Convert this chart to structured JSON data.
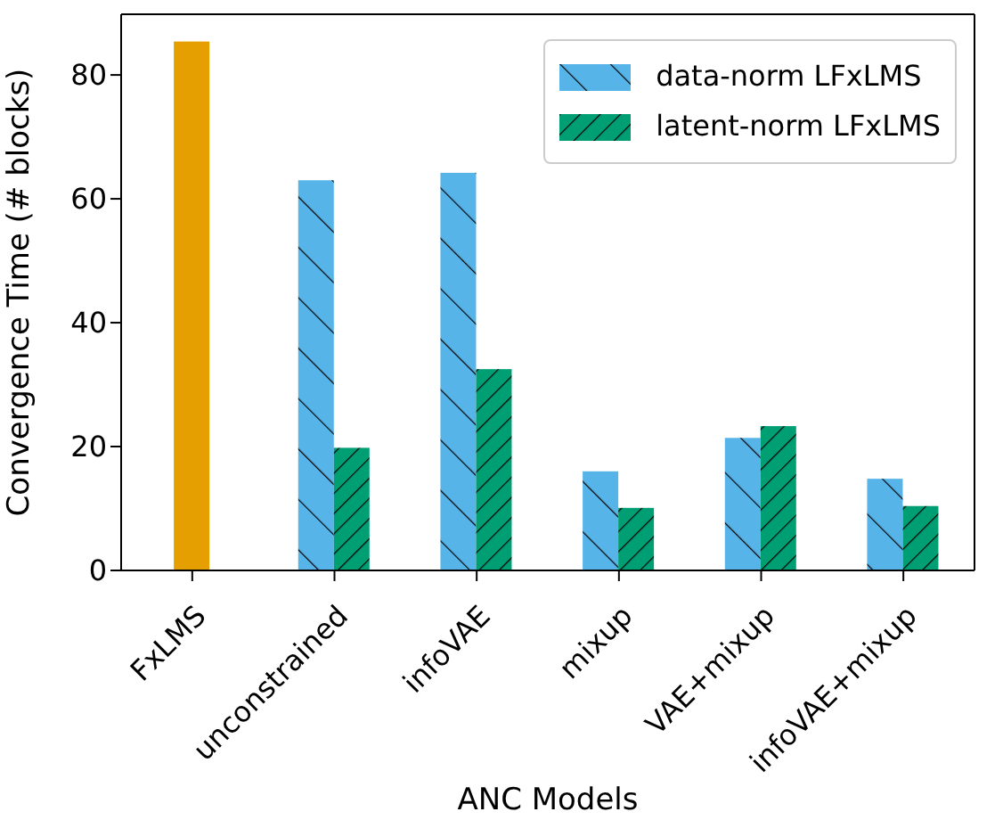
{
  "chart_data": {
    "type": "bar",
    "xlabel": "ANC Models",
    "ylabel": "Convergence Time (# blocks)",
    "categories": [
      "FxLMS",
      "unconstrained",
      "infoVAE",
      "mixup",
      "VAE+mixup",
      "infoVAE+mixup"
    ],
    "series": [
      {
        "name": "data-norm LFxLMS",
        "color": "#56b4e9",
        "values": [
          null,
          63.0,
          64.2,
          16.0,
          21.4,
          14.8
        ]
      },
      {
        "name": "latent-norm LFxLMS",
        "color": "#009e73",
        "values": [
          null,
          19.8,
          32.5,
          10.1,
          23.3,
          10.4
        ]
      },
      {
        "color": "#e69f00",
        "values": [
          85.4,
          null,
          null,
          null,
          null,
          null
        ]
      }
    ],
    "ylim": [
      0,
      89.8
    ],
    "yticks": [
      0,
      20,
      40,
      60,
      80
    ],
    "grid": false,
    "legend": "top right"
  }
}
